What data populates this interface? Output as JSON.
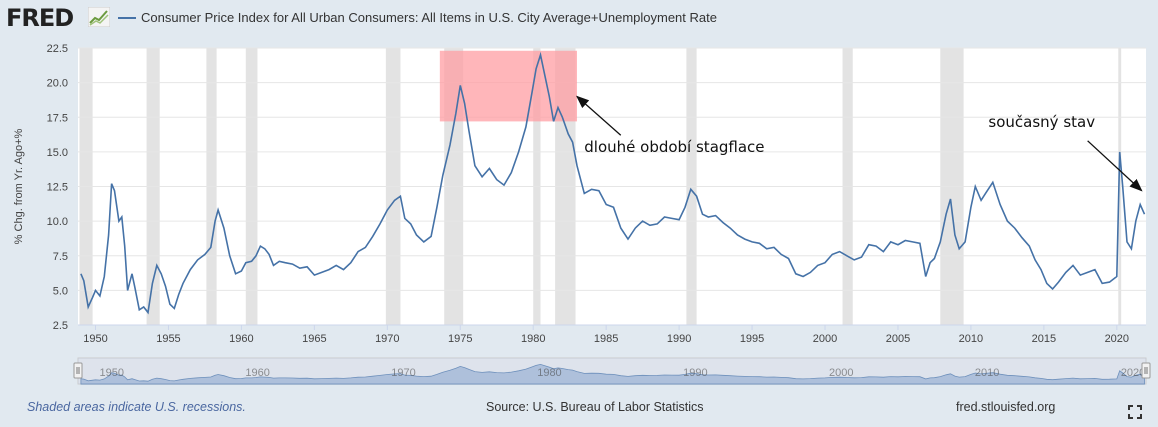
{
  "header": {
    "logo_text": "FRED",
    "logo_icon": "trend-chart-icon",
    "legend_label": "Consumer Price Index for All Urban Consumers: All Items in U.S. City Average+Unemployment Rate",
    "series_color": "#4572a7"
  },
  "footer": {
    "recession_note": "Shaded areas indicate U.S. recessions.",
    "source": "Source: U.S. Bureau of Labor Statistics",
    "site": "fred.stlouisfed.org",
    "fullscreen_icon": "fullscreen-icon"
  },
  "chart_data": {
    "type": "line",
    "ylabel": "% Chg. from Yr. Ago+%",
    "xlim": [
      1948.8,
      2022.0
    ],
    "ylim": [
      2.5,
      22.5
    ],
    "y_ticks": [
      "2.5",
      "5.0",
      "7.5",
      "10.0",
      "12.5",
      "15.0",
      "17.5",
      "20.0",
      "22.5"
    ],
    "x_ticks": [
      "1950",
      "1955",
      "1960",
      "1965",
      "1970",
      "1975",
      "1980",
      "1985",
      "1990",
      "1995",
      "2000",
      "2005",
      "2010",
      "2015",
      "2020"
    ],
    "navigator_ticks": [
      "1950",
      "1960",
      "1970",
      "1980",
      "1990",
      "2000",
      "2010",
      "2020"
    ],
    "grid": true,
    "line_color": "#4572a7",
    "recessions": [
      [
        1948.9,
        1949.8
      ],
      [
        1953.5,
        1954.4
      ],
      [
        1957.6,
        1958.3
      ],
      [
        1960.3,
        1961.1
      ],
      [
        1969.9,
        1970.9
      ],
      [
        1973.9,
        1975.2
      ],
      [
        1980.0,
        1980.5
      ],
      [
        1981.5,
        1982.9
      ],
      [
        1990.5,
        1991.2
      ],
      [
        2001.2,
        2001.9
      ],
      [
        2007.9,
        2009.5
      ],
      [
        2020.1,
        2020.3
      ]
    ],
    "highlight": {
      "x": [
        1973.6,
        1983.0
      ],
      "y": [
        17.2,
        22.3
      ],
      "color": "#ff9ea3"
    },
    "annotations": [
      {
        "text": "dlouhé období stagflace",
        "x": 1983.5,
        "y": 15.0,
        "arrow_from": [
          1986.0,
          16.2
        ],
        "arrow_to": [
          1983.0,
          19.0
        ]
      },
      {
        "text": "současný stav",
        "x": 2011.2,
        "y": 16.8,
        "arrow_from": [
          2018.0,
          15.8
        ],
        "arrow_to": [
          2021.7,
          12.2
        ]
      }
    ],
    "series": [
      {
        "values": [
          [
            1949.0,
            6.2
          ],
          [
            1949.2,
            5.7
          ],
          [
            1949.5,
            3.8
          ],
          [
            1949.8,
            4.5
          ],
          [
            1950.0,
            5.0
          ],
          [
            1950.3,
            4.6
          ],
          [
            1950.6,
            6.0
          ],
          [
            1950.9,
            9.0
          ],
          [
            1951.1,
            12.7
          ],
          [
            1951.3,
            12.2
          ],
          [
            1951.6,
            10.0
          ],
          [
            1951.8,
            10.3
          ],
          [
            1952.0,
            8.2
          ],
          [
            1952.2,
            5.0
          ],
          [
            1952.5,
            6.2
          ],
          [
            1952.7,
            5.2
          ],
          [
            1953.0,
            3.6
          ],
          [
            1953.3,
            3.8
          ],
          [
            1953.6,
            3.4
          ],
          [
            1953.9,
            5.5
          ],
          [
            1954.2,
            6.8
          ],
          [
            1954.5,
            6.2
          ],
          [
            1954.8,
            5.3
          ],
          [
            1955.1,
            4.0
          ],
          [
            1955.4,
            3.7
          ],
          [
            1955.7,
            4.7
          ],
          [
            1956.0,
            5.5
          ],
          [
            1956.5,
            6.5
          ],
          [
            1957.0,
            7.2
          ],
          [
            1957.5,
            7.6
          ],
          [
            1957.9,
            8.1
          ],
          [
            1958.2,
            10.0
          ],
          [
            1958.4,
            10.8
          ],
          [
            1958.8,
            9.5
          ],
          [
            1959.2,
            7.5
          ],
          [
            1959.6,
            6.2
          ],
          [
            1960.0,
            6.4
          ],
          [
            1960.3,
            7.0
          ],
          [
            1960.7,
            7.1
          ],
          [
            1961.0,
            7.5
          ],
          [
            1961.3,
            8.2
          ],
          [
            1961.6,
            8.0
          ],
          [
            1961.9,
            7.6
          ],
          [
            1962.2,
            6.8
          ],
          [
            1962.6,
            7.1
          ],
          [
            1963.0,
            7.0
          ],
          [
            1963.5,
            6.9
          ],
          [
            1964.0,
            6.6
          ],
          [
            1964.5,
            6.7
          ],
          [
            1965.0,
            6.1
          ],
          [
            1965.5,
            6.3
          ],
          [
            1966.0,
            6.5
          ],
          [
            1966.5,
            6.8
          ],
          [
            1967.0,
            6.5
          ],
          [
            1967.5,
            7.0
          ],
          [
            1968.0,
            7.8
          ],
          [
            1968.5,
            8.1
          ],
          [
            1969.0,
            8.9
          ],
          [
            1969.5,
            9.8
          ],
          [
            1970.0,
            10.8
          ],
          [
            1970.5,
            11.5
          ],
          [
            1970.9,
            11.8
          ],
          [
            1971.2,
            10.2
          ],
          [
            1971.6,
            9.8
          ],
          [
            1972.0,
            9.0
          ],
          [
            1972.5,
            8.5
          ],
          [
            1973.0,
            8.9
          ],
          [
            1973.4,
            11.0
          ],
          [
            1973.8,
            13.3
          ],
          [
            1974.3,
            15.5
          ],
          [
            1974.7,
            17.8
          ],
          [
            1975.0,
            19.8
          ],
          [
            1975.3,
            18.5
          ],
          [
            1975.6,
            16.5
          ],
          [
            1976.0,
            14.0
          ],
          [
            1976.5,
            13.2
          ],
          [
            1977.0,
            13.8
          ],
          [
            1977.5,
            13.0
          ],
          [
            1978.0,
            12.6
          ],
          [
            1978.5,
            13.5
          ],
          [
            1979.0,
            15.0
          ],
          [
            1979.5,
            16.8
          ],
          [
            1979.9,
            19.2
          ],
          [
            1980.2,
            21.0
          ],
          [
            1980.5,
            22.0
          ],
          [
            1980.8,
            20.5
          ],
          [
            1981.1,
            19.0
          ],
          [
            1981.4,
            17.2
          ],
          [
            1981.7,
            18.2
          ],
          [
            1982.0,
            17.5
          ],
          [
            1982.4,
            16.3
          ],
          [
            1982.7,
            15.7
          ],
          [
            1983.0,
            14.0
          ],
          [
            1983.5,
            12.0
          ],
          [
            1984.0,
            12.3
          ],
          [
            1984.5,
            12.2
          ],
          [
            1985.0,
            11.2
          ],
          [
            1985.5,
            11.0
          ],
          [
            1986.0,
            9.5
          ],
          [
            1986.5,
            8.7
          ],
          [
            1987.0,
            9.5
          ],
          [
            1987.5,
            10.0
          ],
          [
            1988.0,
            9.7
          ],
          [
            1988.5,
            9.8
          ],
          [
            1989.0,
            10.3
          ],
          [
            1989.5,
            10.2
          ],
          [
            1990.0,
            10.1
          ],
          [
            1990.4,
            11.0
          ],
          [
            1990.8,
            12.3
          ],
          [
            1991.2,
            11.8
          ],
          [
            1991.6,
            10.5
          ],
          [
            1992.0,
            10.3
          ],
          [
            1992.5,
            10.4
          ],
          [
            1993.0,
            9.9
          ],
          [
            1993.5,
            9.5
          ],
          [
            1994.0,
            9.0
          ],
          [
            1994.5,
            8.7
          ],
          [
            1995.0,
            8.5
          ],
          [
            1995.5,
            8.4
          ],
          [
            1996.0,
            8.0
          ],
          [
            1996.5,
            8.1
          ],
          [
            1997.0,
            7.6
          ],
          [
            1997.5,
            7.3
          ],
          [
            1998.0,
            6.2
          ],
          [
            1998.5,
            6.0
          ],
          [
            1999.0,
            6.3
          ],
          [
            1999.5,
            6.8
          ],
          [
            2000.0,
            7.0
          ],
          [
            2000.5,
            7.6
          ],
          [
            2001.0,
            7.8
          ],
          [
            2001.5,
            7.5
          ],
          [
            2002.0,
            7.2
          ],
          [
            2002.5,
            7.4
          ],
          [
            2003.0,
            8.3
          ],
          [
            2003.5,
            8.2
          ],
          [
            2004.0,
            7.8
          ],
          [
            2004.5,
            8.5
          ],
          [
            2005.0,
            8.3
          ],
          [
            2005.5,
            8.6
          ],
          [
            2006.0,
            8.5
          ],
          [
            2006.5,
            8.4
          ],
          [
            2006.9,
            6.0
          ],
          [
            2007.2,
            7.0
          ],
          [
            2007.5,
            7.3
          ],
          [
            2007.9,
            8.5
          ],
          [
            2008.3,
            10.5
          ],
          [
            2008.6,
            11.6
          ],
          [
            2008.9,
            9.0
          ],
          [
            2009.2,
            8.0
          ],
          [
            2009.6,
            8.5
          ],
          [
            2010.0,
            11.0
          ],
          [
            2010.3,
            12.5
          ],
          [
            2010.7,
            11.5
          ],
          [
            2011.0,
            12.0
          ],
          [
            2011.5,
            12.8
          ],
          [
            2012.0,
            11.2
          ],
          [
            2012.5,
            10.0
          ],
          [
            2013.0,
            9.5
          ],
          [
            2013.5,
            8.8
          ],
          [
            2014.0,
            8.2
          ],
          [
            2014.4,
            7.2
          ],
          [
            2014.8,
            6.5
          ],
          [
            2015.2,
            5.5
          ],
          [
            2015.6,
            5.1
          ],
          [
            2016.0,
            5.6
          ],
          [
            2016.5,
            6.3
          ],
          [
            2017.0,
            6.8
          ],
          [
            2017.5,
            6.1
          ],
          [
            2018.0,
            6.3
          ],
          [
            2018.5,
            6.5
          ],
          [
            2019.0,
            5.5
          ],
          [
            2019.5,
            5.6
          ],
          [
            2020.0,
            6.0
          ],
          [
            2020.2,
            15.0
          ],
          [
            2020.4,
            12.5
          ],
          [
            2020.7,
            8.5
          ],
          [
            2021.0,
            8.0
          ],
          [
            2021.3,
            10.0
          ],
          [
            2021.6,
            11.2
          ],
          [
            2021.9,
            10.5
          ]
        ]
      }
    ]
  }
}
